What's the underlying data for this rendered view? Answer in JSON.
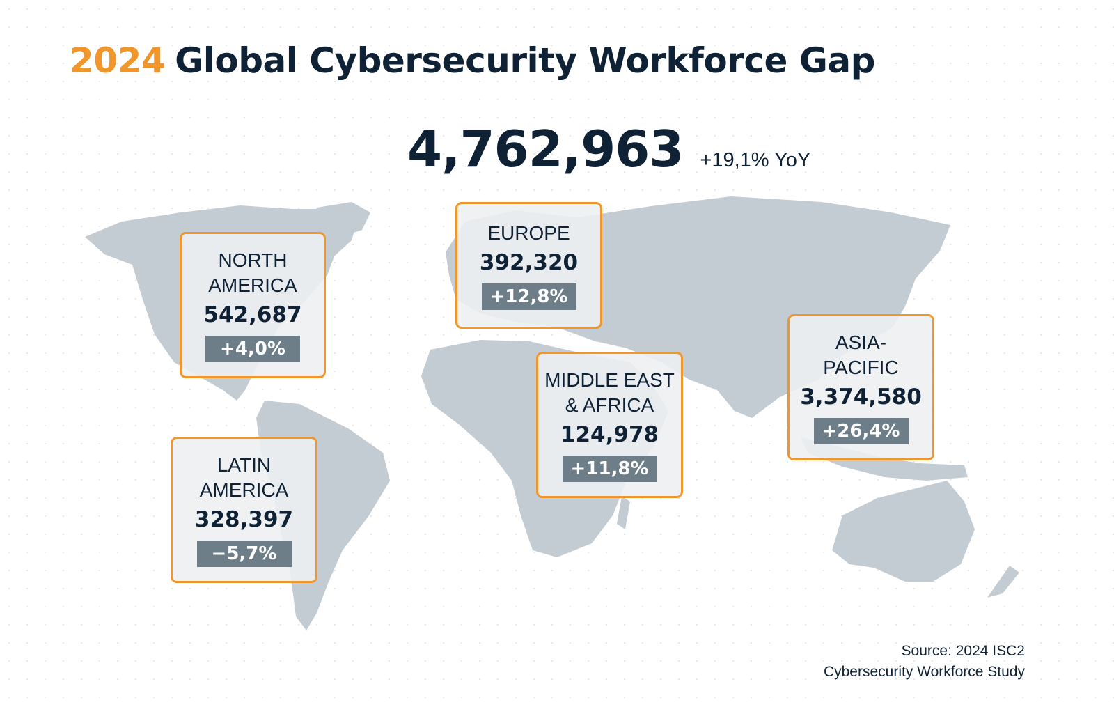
{
  "title": {
    "year": "2024",
    "text": "Global Cybersecurity Workforce Gap"
  },
  "total": {
    "value": "4,762,963",
    "change": "+19,1% YoY"
  },
  "regions": [
    {
      "name": "NORTH\nAMERICA",
      "value": "542,687",
      "change": "+4,0%"
    },
    {
      "name": "EUROPE",
      "value": "392,320",
      "change": "+12,8%"
    },
    {
      "name": "MIDDLE EAST\n& AFRICA",
      "value": "124,978",
      "change": "+11,8%"
    },
    {
      "name": "ASIA-\nPACIFIC",
      "value": "3,374,580",
      "change": "+26,4%"
    },
    {
      "name": "LATIN\nAMERICA",
      "value": "328,397",
      "change": "−5,7%"
    }
  ],
  "source": {
    "line1": "Source: 2024 ISC2",
    "line2": "Cybersecurity Workforce Study"
  },
  "colors": {
    "accent": "#f0962a",
    "text": "#0f2235",
    "land": "#c3ccd3",
    "badge": "#6d7e89"
  }
}
